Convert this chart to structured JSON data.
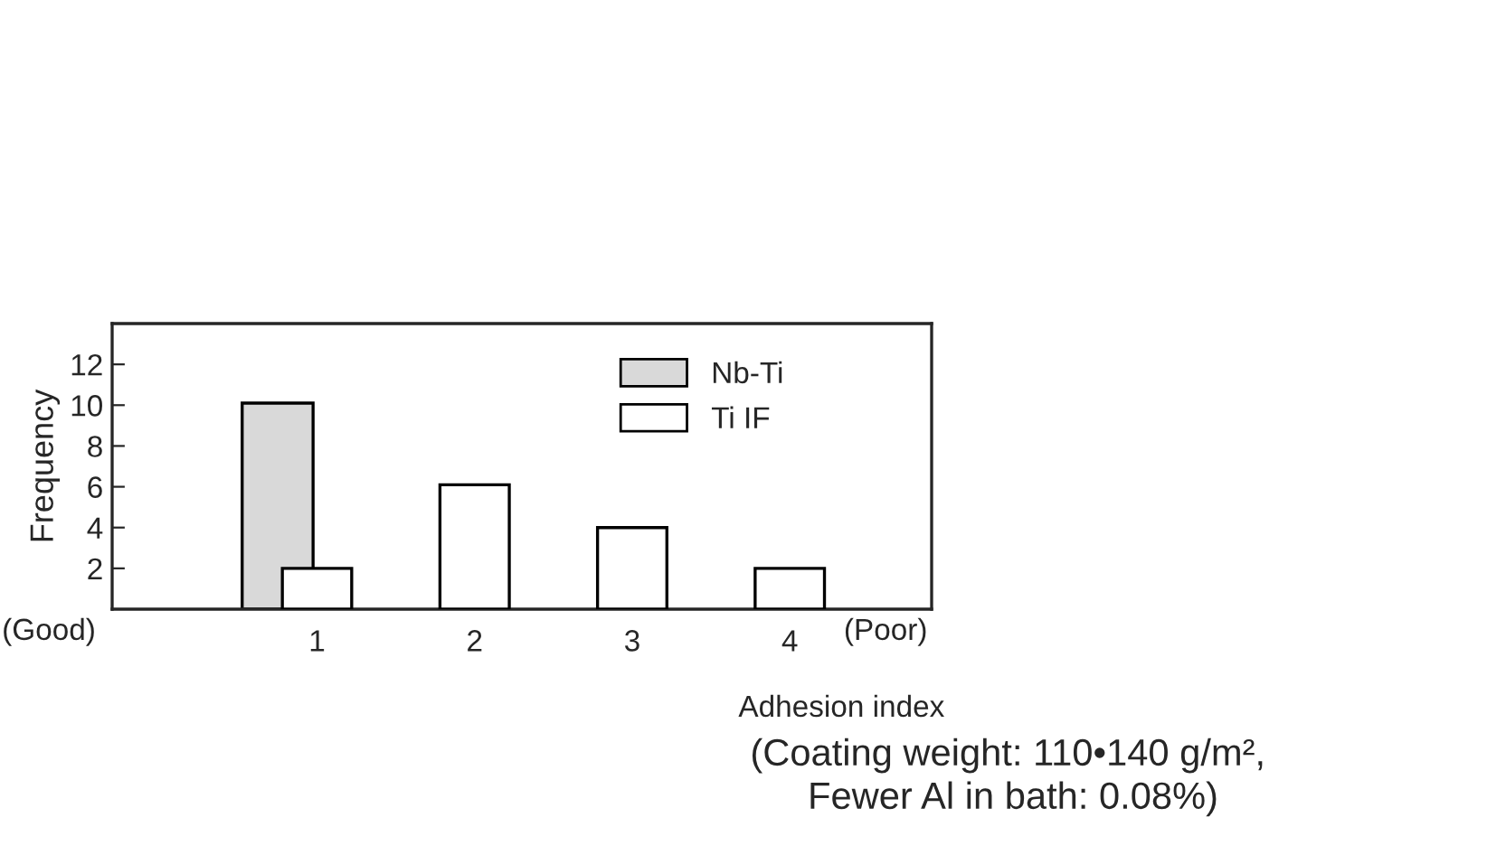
{
  "chart_data": {
    "type": "bar",
    "xlabel": "Adhesion index",
    "ylabel": "Frequency",
    "categories": [
      "1",
      "2",
      "3",
      "4"
    ],
    "series": [
      {
        "name": "Nb-Ti",
        "color": "#d9d9d9",
        "values": [
          10.1,
          null,
          null,
          null
        ]
      },
      {
        "name": "Ti IF",
        "color": "#ffffff",
        "values": [
          2,
          6.1,
          4,
          2
        ]
      }
    ],
    "ylim": [
      0,
      14
    ],
    "yticks": [
      2,
      4,
      6,
      8,
      10,
      12
    ],
    "legend": "top",
    "grid": false,
    "annotations": [
      "(Good)",
      "(Poor)",
      "(Coating weight: 110•140 g/m², \nFewer Al in bath: 0.08%)"
    ]
  }
}
